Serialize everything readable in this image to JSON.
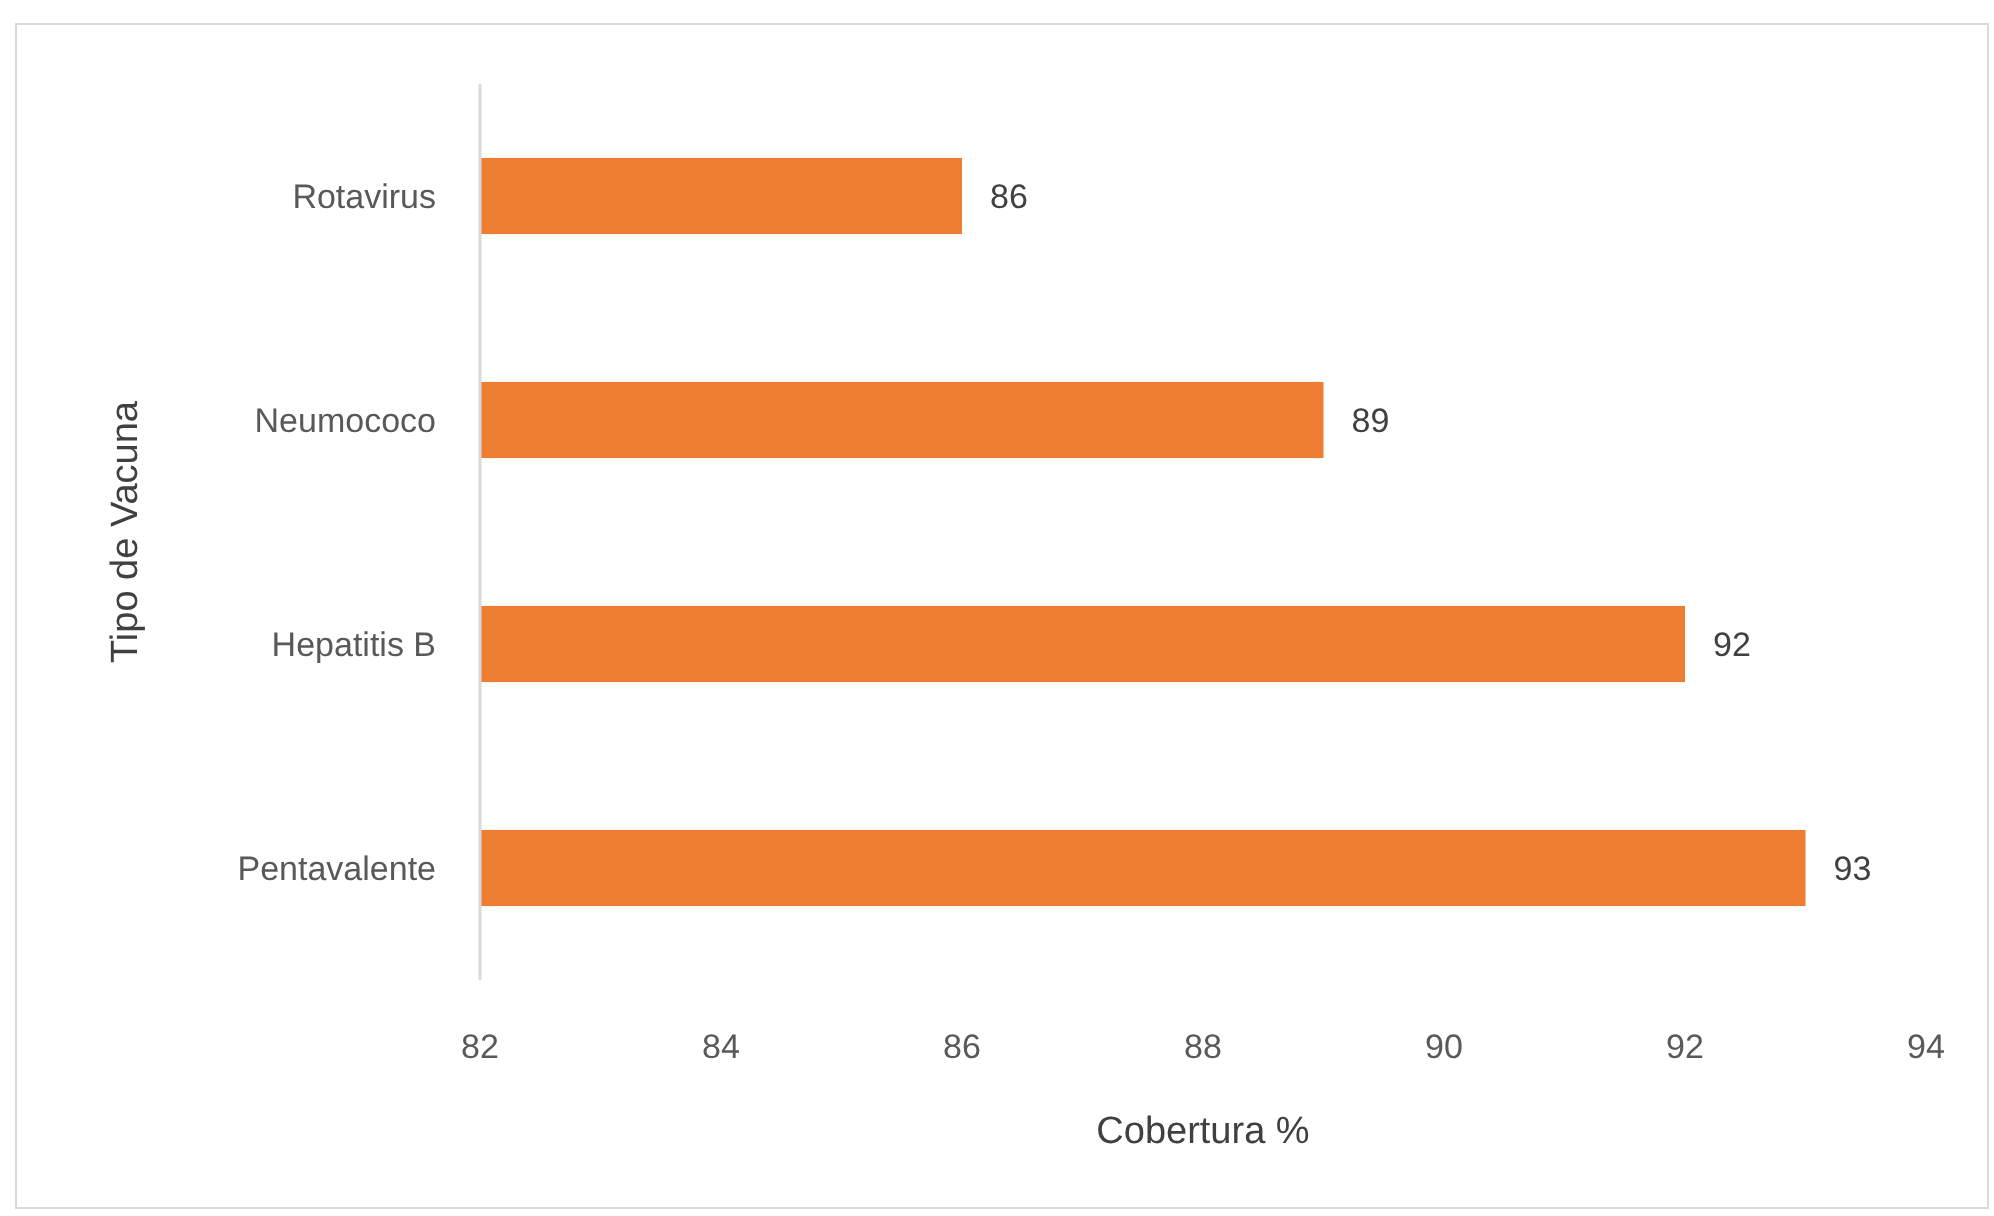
{
  "chart_data": {
    "type": "bar",
    "orientation": "horizontal",
    "xlabel": "Cobertura %",
    "ylabel": "Tipo de Vacuna",
    "categories": [
      "Rotavirus",
      "Neumococo",
      "Hepatitis B",
      "Pentavalente"
    ],
    "values": [
      86,
      89,
      92,
      93
    ],
    "color": "#ed7d31",
    "xlim": [
      82,
      94
    ],
    "xticks": [
      82,
      84,
      86,
      88,
      90,
      92,
      94
    ],
    "grid": false,
    "data_labels": true
  }
}
